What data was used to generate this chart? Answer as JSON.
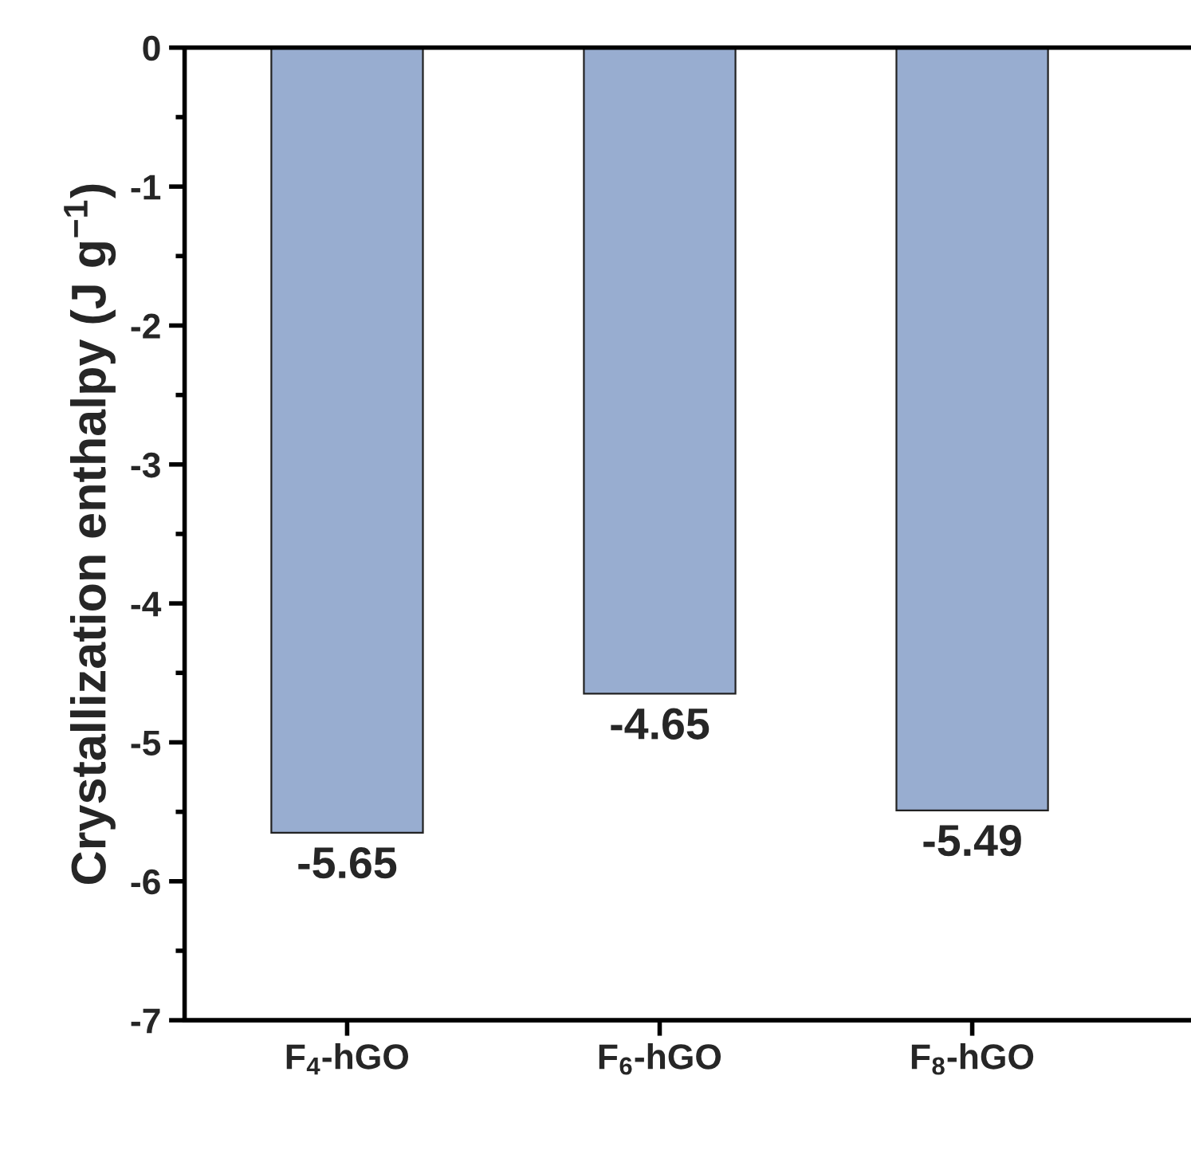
{
  "chart_data": {
    "type": "bar",
    "ylabel": "Crystallization enthalpy (J g$^{−1}$)",
    "categories": [
      "F$_{4}$-hGO",
      "F$_{6}$-hGO",
      "F$_{8}$-hGO"
    ],
    "values": [
      -5.65,
      -4.65,
      -5.49
    ],
    "color": "#98add0",
    "ylim": [
      -7,
      0
    ],
    "yticks": [
      -7,
      -6,
      -5,
      -4,
      -3,
      -2,
      -1,
      0
    ],
    "data_labels": true,
    "grid": false,
    "legend": false
  }
}
